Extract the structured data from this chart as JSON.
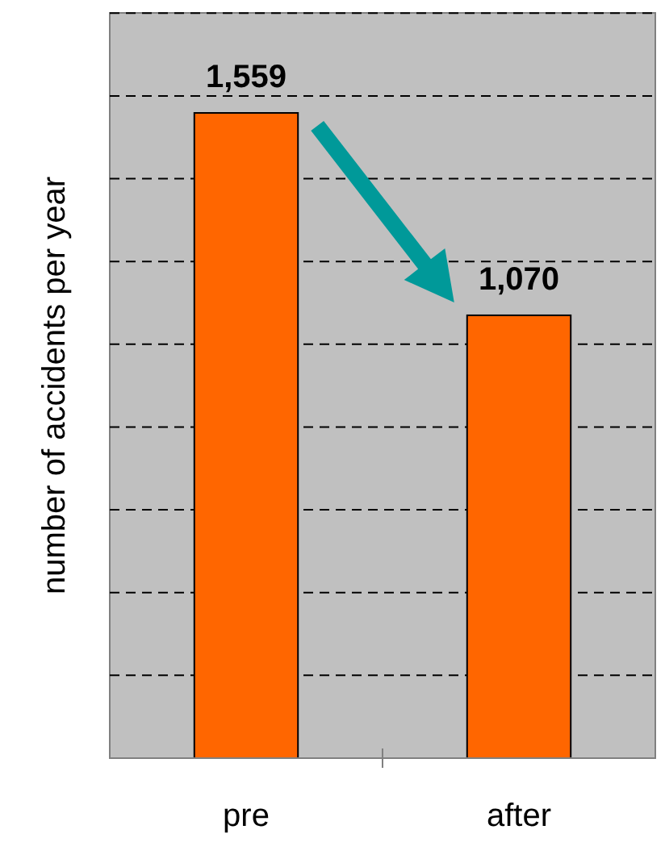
{
  "chart_data": {
    "type": "bar",
    "ylabel": "number of accidents per year",
    "categories": [
      "pre",
      "after"
    ],
    "values": [
      1559,
      1070
    ],
    "color": "#ff6600",
    "value_labels": [
      "1,559",
      "1,070"
    ],
    "grid": "y",
    "tick_labels": "x"
  }
}
